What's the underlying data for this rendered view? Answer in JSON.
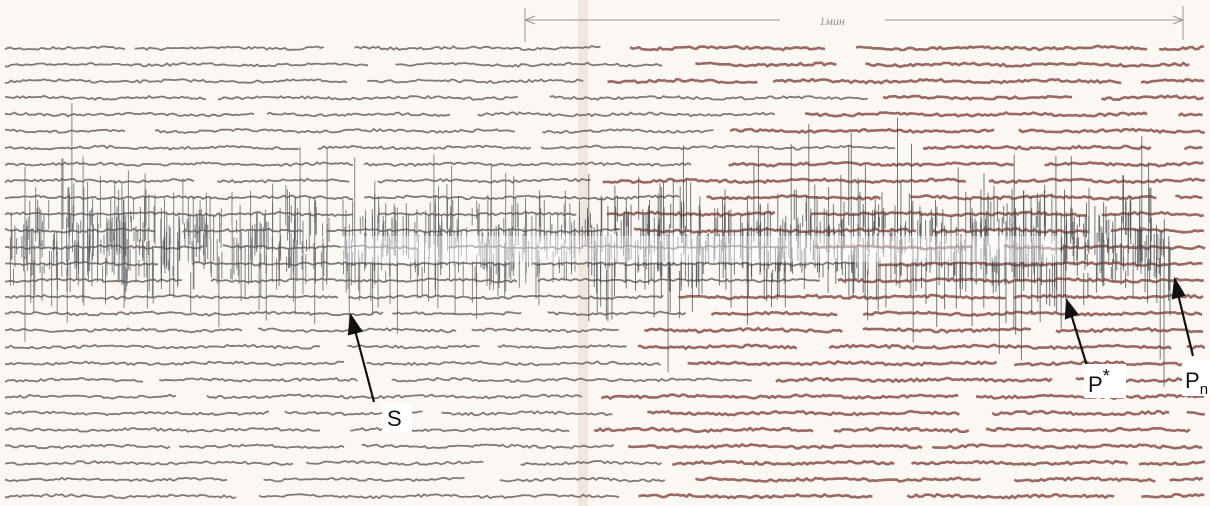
{
  "scale": {
    "label": "1мин"
  },
  "annotations": [
    {
      "text": "S"
    },
    {
      "text": "P",
      "superscript": "*"
    },
    {
      "text": "P",
      "subscript": "n"
    }
  ]
}
